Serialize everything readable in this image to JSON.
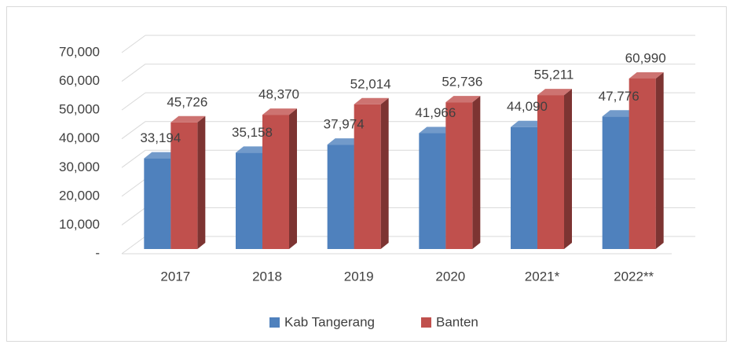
{
  "chart_data": {
    "type": "bar3d",
    "categories": [
      "2017",
      "2018",
      "2019",
      "2020",
      "2021*",
      "2022**"
    ],
    "series": [
      {
        "name": "Kab Tangerang",
        "color": "#4f81bd",
        "values": [
          33194,
          35158,
          37974,
          41966,
          44090,
          47776
        ],
        "value_labels": [
          "33,194",
          "35,158",
          "37,974",
          "41,966",
          "44,090",
          "47,776"
        ]
      },
      {
        "name": "Banten",
        "color": "#c0504d",
        "values": [
          45726,
          48370,
          52014,
          52736,
          55211,
          60990
        ],
        "value_labels": [
          "45,726",
          "48,370",
          "52,014",
          "52,736",
          "55,211",
          "60,990"
        ]
      }
    ],
    "ylim": [
      0,
      70000
    ],
    "yticks": [
      {
        "value": 0,
        "label": "-"
      },
      {
        "value": 10000,
        "label": "10,000"
      },
      {
        "value": 20000,
        "label": "20,000"
      },
      {
        "value": 30000,
        "label": "30,000"
      },
      {
        "value": 40000,
        "label": "40,000"
      },
      {
        "value": 50000,
        "label": "50,000"
      },
      {
        "value": 60000,
        "label": "60,000"
      },
      {
        "value": 70000,
        "label": "70,000"
      }
    ],
    "grid": true,
    "legend": "bottom"
  }
}
